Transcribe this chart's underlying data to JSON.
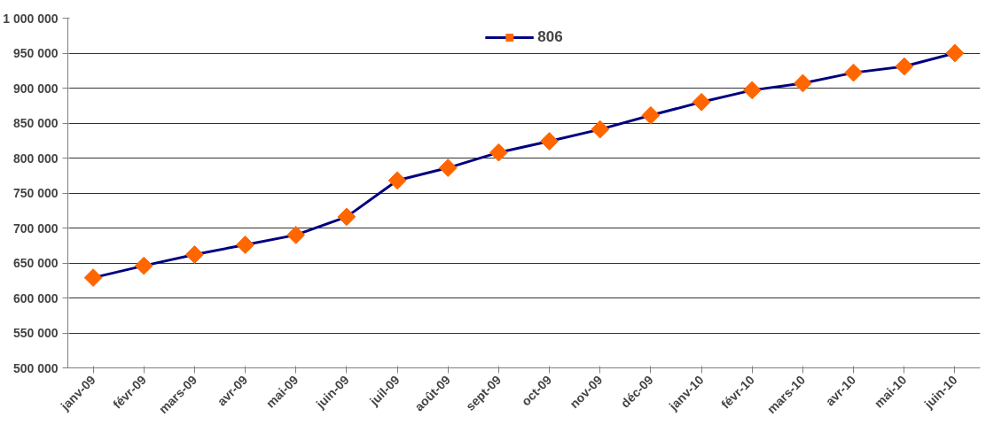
{
  "chart_data": {
    "type": "line",
    "categories": [
      "janv-09",
      "févr-09",
      "mars-09",
      "avr-09",
      "mai-09",
      "juin-09",
      "juil-09",
      "août-09",
      "sept-09",
      "oct-09",
      "nov-09",
      "déc-09",
      "janv-10",
      "févr-10",
      "mars-10",
      "avr-10",
      "mai-10",
      "juin-10"
    ],
    "series": [
      {
        "name": "806",
        "color": "#000080",
        "colors": [
          "#ff6600",
          "#ff6600",
          "#ff6600",
          "#ff6600",
          "#ff6600",
          "#ff6600",
          "#ff6600",
          "#ff6600",
          "#ff6600",
          "#ff6600",
          "#ff6600",
          "#ff6600",
          "#ff6600",
          "#ff6600",
          "#ff6600",
          "#ff6600",
          "#ff6600",
          "#ff6600"
        ],
        "values": [
          629000,
          646000,
          662000,
          676000,
          690000,
          716000,
          768000,
          786000,
          808000,
          824000,
          841000,
          861000,
          880000,
          897000,
          907000,
          922000,
          931000,
          950000
        ]
      }
    ],
    "ylim": [
      500000,
      1000000
    ],
    "yticks": [
      {
        "value": 500000,
        "label": "500 000"
      },
      {
        "value": 550000,
        "label": "550 000"
      },
      {
        "value": 600000,
        "label": "600 000"
      },
      {
        "value": 650000,
        "label": "650 000"
      },
      {
        "value": 700000,
        "label": "700 000"
      },
      {
        "value": 750000,
        "label": "750 000"
      },
      {
        "value": 800000,
        "label": "800 000"
      },
      {
        "value": 850000,
        "label": "850 000"
      },
      {
        "value": 900000,
        "label": "900 000"
      },
      {
        "value": 950000,
        "label": "950 000"
      },
      {
        "value": 1000000,
        "label": "1 000 000"
      }
    ],
    "grid": "y",
    "legend": "top",
    "marker": "diamond",
    "line_style": "solid"
  }
}
